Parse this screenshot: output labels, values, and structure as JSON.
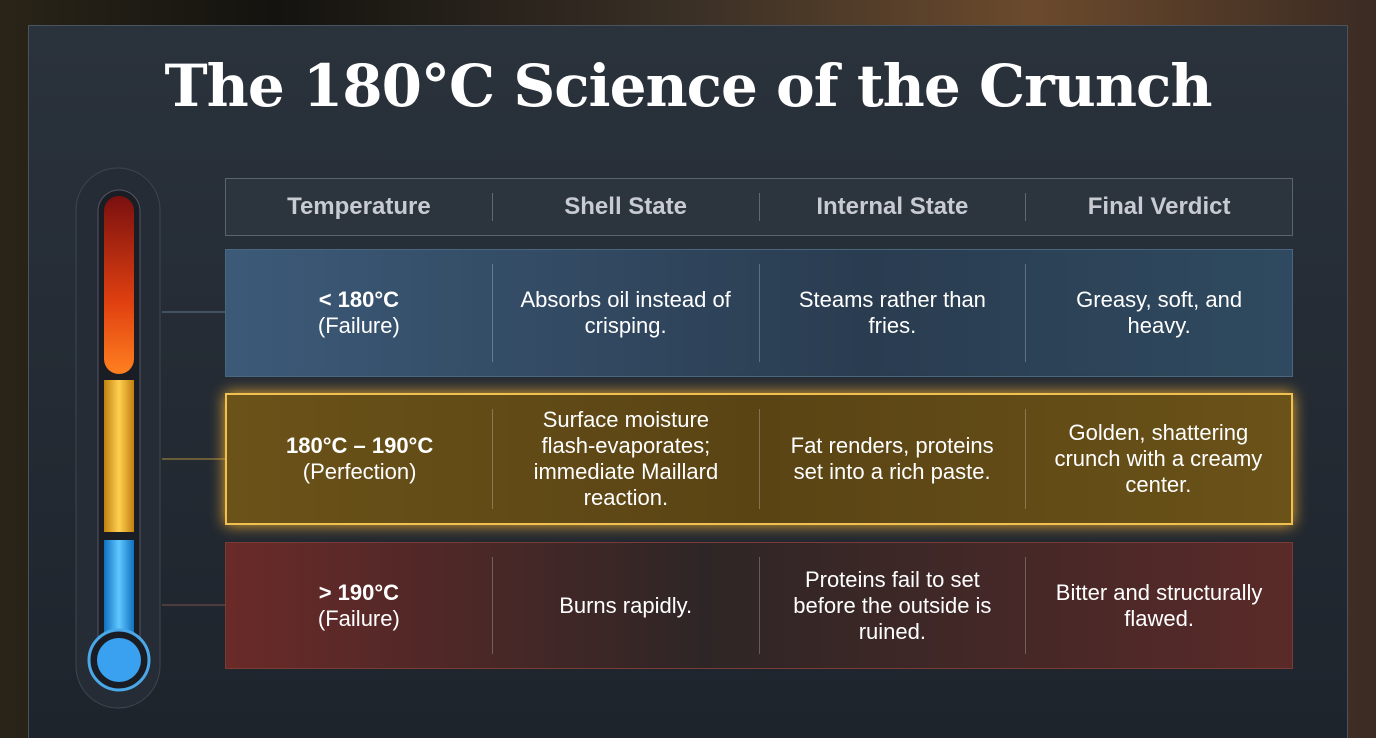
{
  "title": "The 180°C Science of the Crunch",
  "table": {
    "headers": [
      "Temperature",
      "Shell State",
      "Internal State",
      "Final Verdict"
    ],
    "rows": [
      {
        "range": "< 180°C",
        "label": "(Failure)",
        "cells": [
          "Absorbs oil instead of crisping.",
          "Steams rather than fries.",
          "Greasy, soft, and heavy."
        ]
      },
      {
        "range": "180°C – 190°C",
        "label": "(Perfection)",
        "cells": [
          "Surface moisture flash-evaporates; immediate Maillard reaction.",
          "Fat renders, proteins set into a rich paste.",
          "Golden, shattering crunch with a creamy center."
        ]
      },
      {
        "range": "> 190°C",
        "label": "(Failure)",
        "cells": [
          "Burns rapidly.",
          "Proteins fail to set before the outside is ruined.",
          "Bitter and structurally flawed."
        ]
      }
    ]
  }
}
